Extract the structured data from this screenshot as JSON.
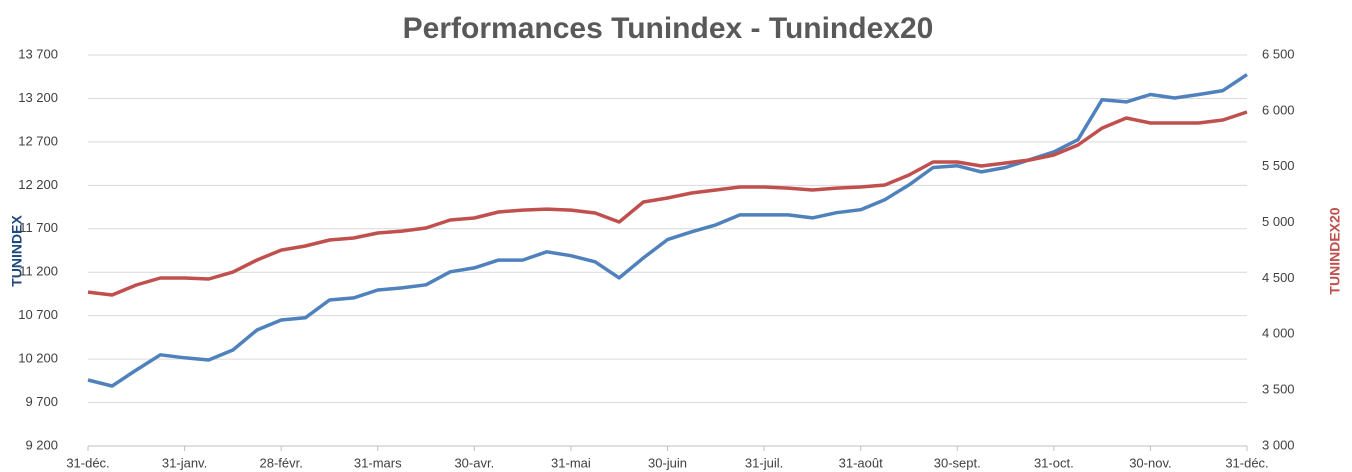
{
  "chart_data": {
    "type": "line",
    "title": "Performances Tunindex - Tunindex20",
    "ylabel": "TUNINDEX",
    "y2label": "TUNINDEX20",
    "categories": [
      "31-déc.",
      null,
      null,
      null,
      "31-janv.",
      null,
      null,
      null,
      "28-févr.",
      null,
      null,
      null,
      "31-mars",
      null,
      null,
      null,
      "30-avr.",
      null,
      null,
      null,
      "31-mai",
      null,
      null,
      null,
      "30-juin",
      null,
      null,
      null,
      "31-juil.",
      null,
      null,
      null,
      "31-août",
      null,
      null,
      null,
      "30-sept.",
      null,
      null,
      null,
      "31-oct.",
      null,
      null,
      null,
      "30-nov.",
      null,
      null,
      null,
      "31-déc."
    ],
    "series": [
      {
        "name": "TUNINDEX",
        "color": "#4f81bd",
        "axis": "y",
        "values": [
          9960,
          9890,
          10075,
          10250,
          10215,
          10190,
          10305,
          10535,
          10650,
          10675,
          10880,
          10905,
          10995,
          11020,
          11055,
          11205,
          11250,
          11340,
          11340,
          11435,
          11390,
          11320,
          11135,
          11365,
          11575,
          11665,
          11745,
          11860,
          11860,
          11860,
          11825,
          11885,
          11920,
          12035,
          12205,
          12405,
          12425,
          12355,
          12405,
          12495,
          12585,
          12725,
          13185,
          13160,
          13245,
          13205,
          13245,
          13290,
          13475
        ]
      },
      {
        "name": "TUNINDEX20",
        "color": "#c0504d",
        "axis": "y2",
        "values": [
          4378,
          4352,
          4441,
          4504,
          4504,
          4495,
          4557,
          4665,
          4754,
          4790,
          4844,
          4862,
          4907,
          4924,
          4951,
          5023,
          5041,
          5095,
          5112,
          5121,
          5112,
          5086,
          5005,
          5184,
          5220,
          5265,
          5292,
          5318,
          5318,
          5309,
          5292,
          5309,
          5318,
          5336,
          5426,
          5542,
          5542,
          5506,
          5533,
          5560,
          5605,
          5694,
          5846,
          5936,
          5891,
          5891,
          5891,
          5918,
          5990
        ]
      }
    ],
    "ylim": [
      9200,
      13700
    ],
    "yticks": [
      {
        "value": 9200,
        "label": "9 200"
      },
      {
        "value": 9700,
        "label": "9 700"
      },
      {
        "value": 10200,
        "label": "10 200"
      },
      {
        "value": 10700,
        "label": "10 700"
      },
      {
        "value": 11200,
        "label": "11 200"
      },
      {
        "value": 11700,
        "label": "11 700"
      },
      {
        "value": 12200,
        "label": "12 200"
      },
      {
        "value": 12700,
        "label": "12 700"
      },
      {
        "value": 13200,
        "label": "13 200"
      },
      {
        "value": 13700,
        "label": "13 700"
      }
    ],
    "y2lim": [
      3000,
      6500
    ],
    "y2ticks": [
      {
        "value": 3000,
        "label": "3 000"
      },
      {
        "value": 3500,
        "label": "3 500"
      },
      {
        "value": 4000,
        "label": "4 000"
      },
      {
        "value": 4500,
        "label": "4 500"
      },
      {
        "value": 5000,
        "label": "5 000"
      },
      {
        "value": 5500,
        "label": "5 500"
      },
      {
        "value": 6000,
        "label": "6 000"
      },
      {
        "value": 6500,
        "label": "6 500"
      }
    ],
    "grid": true
  }
}
